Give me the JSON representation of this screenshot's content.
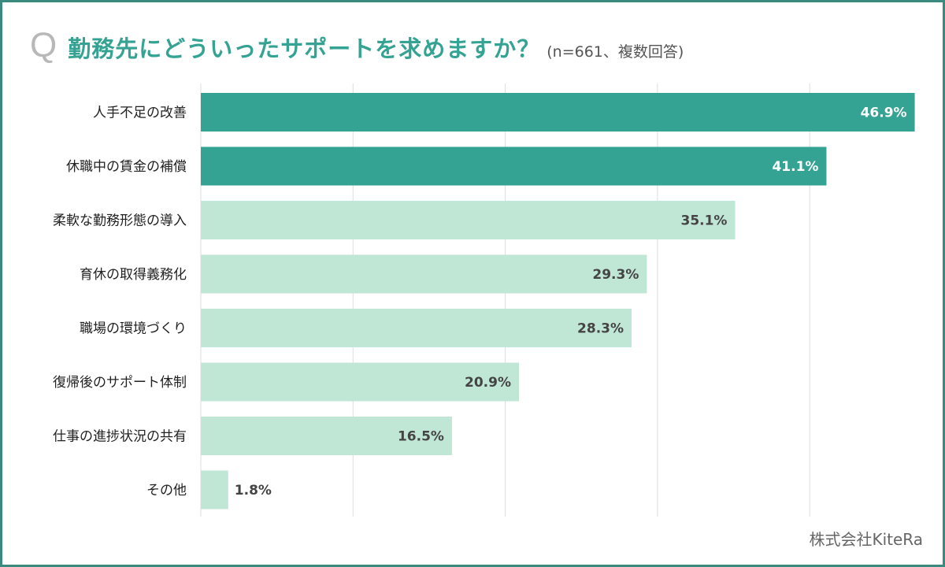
{
  "header": {
    "q_mark": "Q",
    "title": "勤務先にどういったサポートを求めますか？",
    "subtitle": "(n=661、複数回答)"
  },
  "footer": {
    "credit": "株式会社KiteRa"
  },
  "colors": {
    "frame": "#3a8a7f",
    "title": "#35a393",
    "bar_dark": "#35a393",
    "bar_light": "#c0e6d6",
    "grid": "#dddddd",
    "label_on_dark": "#ffffff",
    "label_on_light": "#444444",
    "category_text": "#222222"
  },
  "chart_data": {
    "type": "bar",
    "orientation": "horizontal",
    "title": "勤務先にどういったサポートを求めますか？",
    "subtitle": "(n=661、複数回答)",
    "categories": [
      "人手不足の改善",
      "休職中の賃金の補償",
      "柔軟な勤務形態の導入",
      "育休の取得義務化",
      "職場の環境づくり",
      "復帰後のサポート体制",
      "仕事の進捗状況の共有",
      "その他"
    ],
    "values": [
      46.9,
      41.1,
      35.1,
      29.3,
      28.3,
      20.9,
      16.5,
      1.8
    ],
    "value_labels": [
      "46.9%",
      "41.1%",
      "35.1%",
      "29.3%",
      "28.3%",
      "20.9%",
      "16.5%",
      "1.8%"
    ],
    "highlighted": [
      true,
      true,
      false,
      false,
      false,
      false,
      false,
      false
    ],
    "xlim": [
      0,
      47
    ],
    "grid_x": [
      0,
      10,
      20,
      30,
      40
    ],
    "xlabel": "",
    "ylabel": "",
    "unit": "%",
    "legend": "none"
  }
}
